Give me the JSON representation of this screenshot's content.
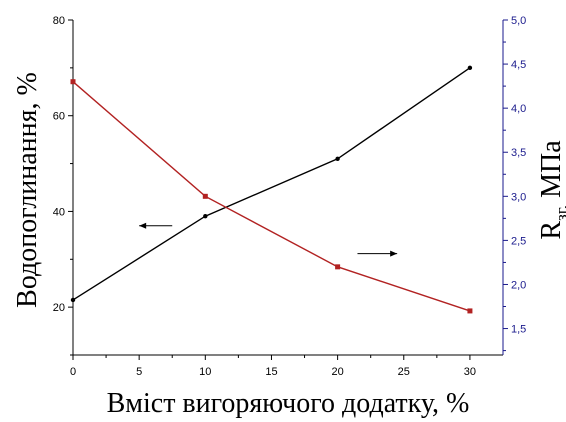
{
  "chart_data": {
    "type": "line",
    "xlabel": "Вміст вигоряючого додатку, %",
    "ylabel_left": "Водопоглинання, %",
    "ylabel_right_main": "R",
    "ylabel_right_sub": "зг,",
    "ylabel_right_unit": " МПа",
    "xlim": [
      0,
      32.5
    ],
    "ylim_left": [
      10,
      80
    ],
    "ylim_right": [
      1.2,
      5.0
    ],
    "x_ticks": [
      "0",
      "5",
      "10",
      "15",
      "20",
      "25",
      "30"
    ],
    "y_left_ticks": [
      "20",
      "40",
      "60",
      "80"
    ],
    "y_right_ticks": [
      "1,5",
      "2,0",
      "2,5",
      "3,0",
      "3,5",
      "4,0",
      "4,5",
      "5,0"
    ],
    "grid": false,
    "series": [
      {
        "axis": "left",
        "color": "#000000",
        "marker": "circle",
        "x": [
          0,
          10,
          20,
          30
        ],
        "y": [
          21.5,
          39,
          51,
          70
        ]
      },
      {
        "axis": "right",
        "color": "#b22222",
        "marker": "square",
        "x": [
          0,
          10,
          20,
          30
        ],
        "y": [
          4.3,
          3.0,
          2.2,
          1.7
        ]
      }
    ],
    "annotations": [
      {
        "type": "arrow",
        "direction": "left",
        "axis": "left",
        "x_from": 7.5,
        "x_to": 5.0,
        "y": 37
      },
      {
        "type": "arrow",
        "direction": "right",
        "axis": "right",
        "x_from": 21.5,
        "x_to": 24.5,
        "y": 2.35
      }
    ]
  }
}
